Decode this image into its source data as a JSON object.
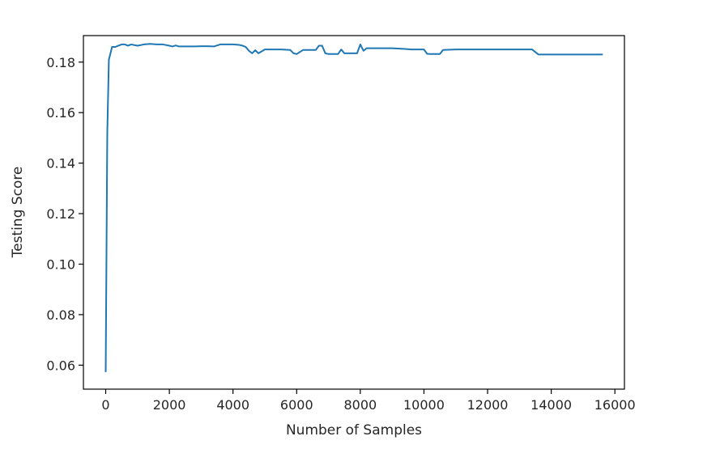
{
  "chart_data": {
    "type": "line",
    "title": "",
    "xlabel": "Number of Samples",
    "ylabel": "Testing Score",
    "xlim": [
      -700,
      16300
    ],
    "ylim": [
      0.0505,
      0.1905
    ],
    "xticks": [
      0,
      2000,
      4000,
      6000,
      8000,
      10000,
      12000,
      14000,
      16000
    ],
    "xtick_labels": [
      "0",
      "2000",
      "4000",
      "6000",
      "8000",
      "10000",
      "12000",
      "14000",
      "16000"
    ],
    "yticks": [
      0.06,
      0.08,
      0.1,
      0.12,
      0.14,
      0.16,
      0.18
    ],
    "ytick_labels": [
      "0.06",
      "0.08",
      "0.10",
      "0.12",
      "0.14",
      "0.16",
      "0.18"
    ],
    "grid": false,
    "series": [
      {
        "color": "#1f77b4",
        "x": [
          0,
          50,
          100,
          150,
          200,
          300,
          400,
          500,
          600,
          700,
          800,
          1000,
          1200,
          1400,
          1600,
          1800,
          2000,
          2100,
          2200,
          2300,
          2500,
          2800,
          3000,
          3200,
          3400,
          3600,
          3800,
          4000,
          4200,
          4300,
          4400,
          4500,
          4600,
          4700,
          4800,
          5000,
          5200,
          5500,
          5800,
          5900,
          6000,
          6100,
          6200,
          6400,
          6600,
          6700,
          6800,
          6900,
          7000,
          7200,
          7300,
          7400,
          7500,
          7700,
          7900,
          8000,
          8100,
          8200,
          8400,
          8600,
          9000,
          9400,
          9600,
          10000,
          10100,
          10200,
          10500,
          10600,
          11000,
          12000,
          13000,
          13400,
          13500,
          13600,
          14000,
          15000,
          15600
        ],
        "y": [
          0.0575,
          0.152,
          0.181,
          0.1835,
          0.186,
          0.186,
          0.1865,
          0.187,
          0.187,
          0.1865,
          0.187,
          0.1865,
          0.187,
          0.1872,
          0.187,
          0.187,
          0.1865,
          0.1862,
          0.1866,
          0.1862,
          0.1862,
          0.1862,
          0.1863,
          0.1863,
          0.1862,
          0.187,
          0.187,
          0.187,
          0.1868,
          0.1865,
          0.186,
          0.1845,
          0.1835,
          0.1847,
          0.1835,
          0.185,
          0.185,
          0.185,
          0.1848,
          0.1835,
          0.1832,
          0.184,
          0.1848,
          0.1848,
          0.1848,
          0.1865,
          0.1865,
          0.1835,
          0.1832,
          0.1832,
          0.1832,
          0.185,
          0.1835,
          0.1835,
          0.1835,
          0.187,
          0.1845,
          0.1855,
          0.1855,
          0.1855,
          0.1855,
          0.1852,
          0.185,
          0.185,
          0.1833,
          0.1832,
          0.1832,
          0.1848,
          0.185,
          0.185,
          0.185,
          0.185,
          0.184,
          0.183,
          0.183,
          0.183,
          0.183
        ]
      }
    ]
  }
}
